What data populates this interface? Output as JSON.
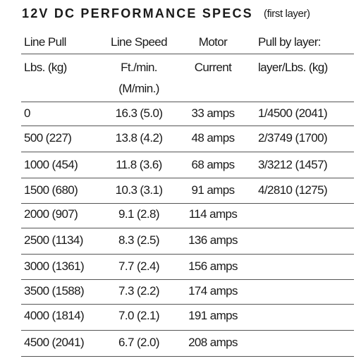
{
  "header": {
    "title": "12V DC PERFORMANCE SPECS",
    "subtitle": "(first layer)"
  },
  "table": {
    "columns": [
      {
        "name": "Line Pull",
        "unit": [
          "Lbs. (kg)"
        ]
      },
      {
        "name": "Line Speed",
        "unit": [
          "Ft./min.",
          "(M/min.)"
        ]
      },
      {
        "name": "Motor",
        "unit": [
          "Current"
        ]
      },
      {
        "name": "Pull by layer:",
        "unit": [
          "layer/Lbs. (kg)"
        ]
      }
    ],
    "rows": [
      [
        "0",
        "16.3 (5.0)",
        "33 amps",
        "1/4500 (2041)"
      ],
      [
        "500 (227)",
        "13.8 (4.2)",
        "48 amps",
        "2/3749 (1700)"
      ],
      [
        "1000 (454)",
        "11.8 (3.6)",
        "68 amps",
        "3/3212 (1457)"
      ],
      [
        "1500 (680)",
        "10.3 (3.1)",
        "91 amps",
        "4/2810 (1275)"
      ],
      [
        "2000 (907)",
        "9.1 (2.8)",
        "114 amps"
      ],
      [
        "2500 (1134)",
        "8.3 (2.5)",
        "136 amps"
      ],
      [
        "3000 (1361)",
        "7.7 (2.4)",
        "156 amps"
      ],
      [
        "3500 (1588)",
        "7.3 (2.2)",
        "174 amps"
      ],
      [
        "4000 (1814)",
        "7.0 (2.1)",
        "191 amps"
      ],
      [
        "4500 (2041)",
        "6.7 (2.0)",
        "208 amps"
      ]
    ]
  }
}
